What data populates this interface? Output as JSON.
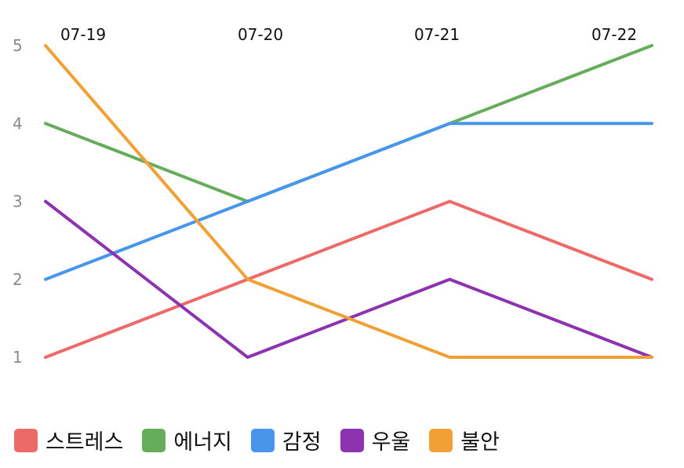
{
  "chart_data": {
    "type": "line",
    "categories": [
      "07-19",
      "07-20",
      "07-21",
      "07-22"
    ],
    "ylim": [
      1,
      5
    ],
    "yticks": [
      1,
      2,
      3,
      4,
      5
    ],
    "grid": false,
    "legend_position": "bottom-left",
    "x_axis_position": "top",
    "series": [
      {
        "name": "스트레스",
        "color": "#EC6A67",
        "values": [
          1,
          2,
          3,
          2
        ]
      },
      {
        "name": "에너지",
        "color": "#66AD5B",
        "values": [
          4,
          3,
          4,
          5
        ]
      },
      {
        "name": "감정",
        "color": "#4796EC",
        "values": [
          2,
          3,
          4,
          4
        ]
      },
      {
        "name": "우울",
        "color": "#8D33AF",
        "values": [
          3,
          1,
          2,
          1
        ]
      },
      {
        "name": "불안",
        "color": "#F0A035",
        "values": [
          5,
          2,
          1,
          1
        ]
      }
    ]
  }
}
